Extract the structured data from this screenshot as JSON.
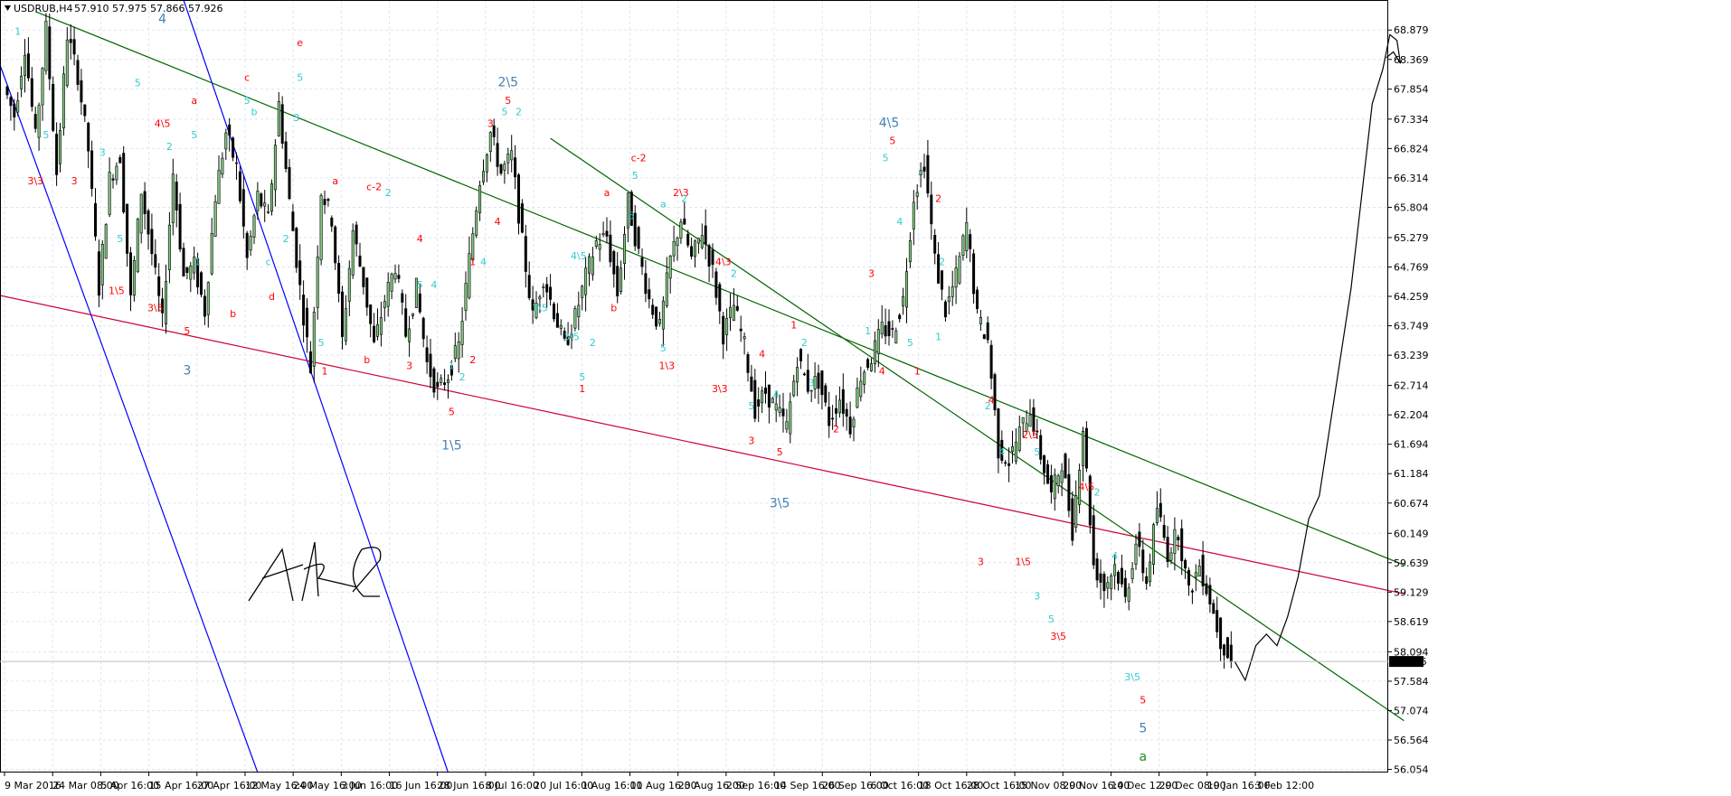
{
  "header": {
    "symbol_timeframe": "USDRUB,H4",
    "ohlc": "57.910 57.975 57.866 57.926"
  },
  "chart_data": {
    "type": "line",
    "symbol": "USDRUB",
    "timeframe": "H4",
    "ylim": [
      56.0,
      69.4
    ],
    "y_ticks": [
      68.879,
      68.369,
      67.854,
      67.334,
      66.824,
      66.314,
      65.804,
      65.279,
      64.769,
      64.259,
      63.749,
      63.239,
      62.714,
      62.204,
      61.694,
      61.184,
      60.674,
      60.149,
      59.639,
      59.129,
      58.619,
      58.094,
      57.584,
      57.074,
      56.564,
      56.054
    ],
    "x_ticks": [
      "9 Mar 2016",
      "24 Mar 08:00",
      "5 Apr 16:00",
      "15 Apr 16:00",
      "27 Apr 16:00",
      "12 May 16:00",
      "24 May 16:00",
      "3 Jun 16:00",
      "16 Jun 16:00",
      "28 Jun 16:00",
      "8 Jul 16:00",
      "20 Jul 16:00",
      "1 Aug 16:00",
      "11 Aug 16:00",
      "23 Aug 16:00",
      "2 Sep 16:00",
      "14 Sep 16:00",
      "26 Sep 16:00",
      "6 Oct 16:00",
      "18 Oct 16:00",
      "28 Oct 16:00",
      "15 Nov 08:00",
      "29 Nov 16:00",
      "14 Dec 12:00",
      "29 Dec 08:00",
      "19 Jan 16:00",
      "3 Feb 12:00"
    ],
    "current_price": 57.926,
    "price_path": [
      [
        0,
        67.9
      ],
      [
        3,
        67.4
      ],
      [
        6,
        68.6
      ],
      [
        9,
        67.0
      ],
      [
        12,
        68.9
      ],
      [
        15,
        66.4
      ],
      [
        18,
        68.8
      ],
      [
        21,
        68.1
      ],
      [
        24,
        66.8
      ],
      [
        27,
        64.4
      ],
      [
        30,
        66.3
      ],
      [
        33,
        66.7
      ],
      [
        36,
        64.2
      ],
      [
        39,
        66.1
      ],
      [
        42,
        65.0
      ],
      [
        45,
        63.8
      ],
      [
        48,
        66.4
      ],
      [
        51,
        64.6
      ],
      [
        54,
        64.8
      ],
      [
        57,
        64.0
      ],
      [
        60,
        66.0
      ],
      [
        63,
        67.1
      ],
      [
        66,
        66.5
      ],
      [
        69,
        64.9
      ],
      [
        72,
        66.0
      ],
      [
        75,
        65.6
      ],
      [
        78,
        67.6
      ],
      [
        81,
        65.9
      ],
      [
        84,
        64.4
      ],
      [
        87,
        63.0
      ],
      [
        90,
        66.1
      ],
      [
        93,
        65.6
      ],
      [
        96,
        63.5
      ],
      [
        99,
        65.4
      ],
      [
        102,
        64.5
      ],
      [
        105,
        63.4
      ],
      [
        108,
        64.2
      ],
      [
        111,
        64.8
      ],
      [
        114,
        63.6
      ],
      [
        117,
        64.4
      ],
      [
        120,
        63.1
      ],
      [
        123,
        62.6
      ],
      [
        126,
        62.9
      ],
      [
        129,
        63.4
      ],
      [
        132,
        64.9
      ],
      [
        135,
        66.3
      ],
      [
        138,
        67.1
      ],
      [
        141,
        66.4
      ],
      [
        144,
        66.7
      ],
      [
        147,
        65.2
      ],
      [
        150,
        63.9
      ],
      [
        153,
        64.6
      ],
      [
        156,
        64.0
      ],
      [
        159,
        63.4
      ],
      [
        162,
        63.9
      ],
      [
        165,
        64.6
      ],
      [
        168,
        65.2
      ],
      [
        171,
        65.3
      ],
      [
        174,
        64.3
      ],
      [
        177,
        65.9
      ],
      [
        180,
        65.0
      ],
      [
        183,
        64.2
      ],
      [
        186,
        63.7
      ],
      [
        189,
        64.9
      ],
      [
        192,
        65.6
      ],
      [
        195,
        64.9
      ],
      [
        198,
        65.4
      ],
      [
        201,
        64.7
      ],
      [
        204,
        63.6
      ],
      [
        207,
        64.1
      ],
      [
        210,
        63.4
      ],
      [
        213,
        62.3
      ],
      [
        216,
        62.6
      ],
      [
        219,
        62.3
      ],
      [
        222,
        62.0
      ],
      [
        225,
        63.2
      ],
      [
        228,
        62.7
      ],
      [
        231,
        62.8
      ],
      [
        234,
        62.1
      ],
      [
        237,
        62.5
      ],
      [
        240,
        62.0
      ],
      [
        243,
        62.9
      ],
      [
        246,
        63.2
      ],
      [
        249,
        63.7
      ],
      [
        252,
        63.6
      ],
      [
        255,
        64.2
      ],
      [
        258,
        66.0
      ],
      [
        261,
        66.6
      ],
      [
        264,
        64.9
      ],
      [
        267,
        64.0
      ],
      [
        270,
        64.6
      ],
      [
        273,
        65.5
      ],
      [
        276,
        63.9
      ],
      [
        279,
        63.5
      ],
      [
        282,
        61.6
      ],
      [
        285,
        61.4
      ],
      [
        288,
        61.9
      ],
      [
        291,
        62.3
      ],
      [
        294,
        61.5
      ],
      [
        297,
        60.8
      ],
      [
        300,
        61.4
      ],
      [
        303,
        60.2
      ],
      [
        306,
        62.0
      ],
      [
        309,
        59.6
      ],
      [
        312,
        59.2
      ],
      [
        315,
        59.6
      ],
      [
        318,
        59.0
      ],
      [
        321,
        60.0
      ],
      [
        324,
        59.3
      ],
      [
        327,
        60.6
      ],
      [
        330,
        59.8
      ],
      [
        333,
        60.2
      ],
      [
        336,
        59.1
      ],
      [
        339,
        59.6
      ],
      [
        342,
        59.0
      ],
      [
        345,
        58.3
      ],
      [
        348,
        57.926
      ]
    ],
    "forecast_path": [
      [
        348,
        57.926
      ],
      [
        351,
        57.6
      ],
      [
        354,
        58.2
      ],
      [
        357,
        58.4
      ],
      [
        360,
        58.2
      ],
      [
        363,
        58.7
      ],
      [
        366,
        59.4
      ],
      [
        369,
        60.4
      ],
      [
        372,
        60.8
      ],
      [
        375,
        62.0
      ],
      [
        378,
        63.2
      ],
      [
        381,
        64.4
      ],
      [
        384,
        66.0
      ],
      [
        387,
        67.6
      ],
      [
        390,
        68.2
      ],
      [
        392,
        68.8
      ],
      [
        394,
        68.7
      ],
      [
        395,
        68.3
      ],
      [
        393,
        68.5
      ],
      [
        391,
        68.4
      ]
    ],
    "trend_lines": [
      {
        "color": "#0000ff",
        "points": [
          [
            -4,
            68.6
          ],
          [
            71,
            56.0
          ]
        ]
      },
      {
        "color": "#0000ff",
        "points": [
          [
            50,
            69.4
          ],
          [
            125,
            56.0
          ]
        ]
      },
      {
        "color": "#cc0033",
        "points": [
          [
            -4,
            64.3
          ],
          [
            396,
            59.1
          ]
        ]
      },
      {
        "color": "#006600",
        "points": [
          [
            8,
            69.2
          ],
          [
            396,
            59.6
          ]
        ]
      },
      {
        "color": "#006600",
        "points": [
          [
            154,
            67.0
          ],
          [
            396,
            56.9
          ]
        ]
      }
    ],
    "wave_labels": [
      {
        "text": "3\\3",
        "x": 8,
        "y": 66.2,
        "color": "#ff0000"
      },
      {
        "text": "3",
        "x": 19,
        "y": 66.2,
        "color": "#ff0000"
      },
      {
        "text": "1\\5",
        "x": 31,
        "y": 64.3,
        "color": "#ff0000"
      },
      {
        "text": "4\\5",
        "x": 44,
        "y": 67.2,
        "color": "#ff0000"
      },
      {
        "text": "3\\5",
        "x": 42,
        "y": 64.0,
        "color": "#ff0000"
      },
      {
        "text": "5",
        "x": 51,
        "y": 63.6,
        "color": "#ff0000"
      },
      {
        "text": "a",
        "x": 53,
        "y": 67.6,
        "color": "#ff0000"
      },
      {
        "text": "b",
        "x": 64,
        "y": 63.9,
        "color": "#ff0000"
      },
      {
        "text": "c",
        "x": 68,
        "y": 68.0,
        "color": "#ff0000"
      },
      {
        "text": "d",
        "x": 75,
        "y": 64.2,
        "color": "#ff0000"
      },
      {
        "text": "e",
        "x": 83,
        "y": 68.6,
        "color": "#ff0000"
      },
      {
        "text": "1",
        "x": 90,
        "y": 62.9,
        "color": "#ff0000"
      },
      {
        "text": "a",
        "x": 93,
        "y": 66.2,
        "color": "#ff0000"
      },
      {
        "text": "b",
        "x": 102,
        "y": 63.1,
        "color": "#ff0000"
      },
      {
        "text": "c-2",
        "x": 104,
        "y": 66.1,
        "color": "#ff0000"
      },
      {
        "text": "3",
        "x": 114,
        "y": 63.0,
        "color": "#ff0000"
      },
      {
        "text": "4",
        "x": 117,
        "y": 65.2,
        "color": "#ff0000"
      },
      {
        "text": "5",
        "x": 126,
        "y": 62.2,
        "color": "#ff0000"
      },
      {
        "text": "3",
        "x": 137,
        "y": 67.2,
        "color": "#ff0000"
      },
      {
        "text": "5",
        "x": 142,
        "y": 67.6,
        "color": "#ff0000"
      },
      {
        "text": "4",
        "x": 139,
        "y": 65.5,
        "color": "#ff0000"
      },
      {
        "text": "1",
        "x": 132,
        "y": 64.8,
        "color": "#ff0000"
      },
      {
        "text": "2",
        "x": 132,
        "y": 63.1,
        "color": "#ff0000"
      },
      {
        "text": "a",
        "x": 170,
        "y": 66.0,
        "color": "#ff0000"
      },
      {
        "text": "b",
        "x": 172,
        "y": 64.0,
        "color": "#ff0000"
      },
      {
        "text": "1",
        "x": 163,
        "y": 62.6,
        "color": "#ff0000"
      },
      {
        "text": "c-2",
        "x": 179,
        "y": 66.6,
        "color": "#ff0000"
      },
      {
        "text": "1\\3",
        "x": 187,
        "y": 63.0,
        "color": "#ff0000"
      },
      {
        "text": "2\\3",
        "x": 191,
        "y": 66.0,
        "color": "#ff0000"
      },
      {
        "text": "4\\3",
        "x": 203,
        "y": 64.8,
        "color": "#ff0000"
      },
      {
        "text": "3\\3",
        "x": 202,
        "y": 62.6,
        "color": "#ff0000"
      },
      {
        "text": "4",
        "x": 214,
        "y": 63.2,
        "color": "#ff0000"
      },
      {
        "text": "3",
        "x": 211,
        "y": 61.7,
        "color": "#ff0000"
      },
      {
        "text": "5",
        "x": 219,
        "y": 61.5,
        "color": "#ff0000"
      },
      {
        "text": "1",
        "x": 223,
        "y": 63.7,
        "color": "#ff0000"
      },
      {
        "text": "2",
        "x": 235,
        "y": 61.9,
        "color": "#ff0000"
      },
      {
        "text": "3",
        "x": 245,
        "y": 64.6,
        "color": "#ff0000"
      },
      {
        "text": "4",
        "x": 248,
        "y": 62.9,
        "color": "#ff0000"
      },
      {
        "text": "5",
        "x": 251,
        "y": 66.9,
        "color": "#ff0000"
      },
      {
        "text": "1",
        "x": 258,
        "y": 62.9,
        "color": "#ff0000"
      },
      {
        "text": "2",
        "x": 264,
        "y": 65.9,
        "color": "#ff0000"
      },
      {
        "text": "4",
        "x": 279,
        "y": 62.4,
        "color": "#ff0000"
      },
      {
        "text": "3",
        "x": 276,
        "y": 59.6,
        "color": "#ff0000"
      },
      {
        "text": "2\\5",
        "x": 290,
        "y": 61.8,
        "color": "#ff0000"
      },
      {
        "text": "1\\5",
        "x": 288,
        "y": 59.6,
        "color": "#ff0000"
      },
      {
        "text": "3\\5",
        "x": 298,
        "y": 58.3,
        "color": "#ff0000"
      },
      {
        "text": "4\\5",
        "x": 306,
        "y": 60.9,
        "color": "#ff0000"
      },
      {
        "text": "5",
        "x": 322,
        "y": 57.2,
        "color": "#ff0000"
      },
      {
        "text": "1",
        "x": 3,
        "y": 68.8,
        "color": "#33cccc"
      },
      {
        "text": "5",
        "x": 11,
        "y": 67.0,
        "color": "#33cccc"
      },
      {
        "text": "5",
        "x": 37,
        "y": 67.9,
        "color": "#33cccc"
      },
      {
        "text": "3",
        "x": 27,
        "y": 66.7,
        "color": "#33cccc"
      },
      {
        "text": "5",
        "x": 32,
        "y": 65.2,
        "color": "#33cccc"
      },
      {
        "text": "2",
        "x": 46,
        "y": 66.8,
        "color": "#33cccc"
      },
      {
        "text": "5",
        "x": 53,
        "y": 67.0,
        "color": "#33cccc"
      },
      {
        "text": "1",
        "x": 54,
        "y": 64.8,
        "color": "#33cccc"
      },
      {
        "text": "b",
        "x": 70,
        "y": 67.4,
        "color": "#33cccc"
      },
      {
        "text": "5",
        "x": 68,
        "y": 67.6,
        "color": "#33cccc"
      },
      {
        "text": "2",
        "x": 79,
        "y": 65.2,
        "color": "#33cccc"
      },
      {
        "text": "3",
        "x": 82,
        "y": 67.3,
        "color": "#33cccc"
      },
      {
        "text": "5",
        "x": 83,
        "y": 68.0,
        "color": "#33cccc"
      },
      {
        "text": "c",
        "x": 74,
        "y": 64.8,
        "color": "#33cccc"
      },
      {
        "text": "5",
        "x": 89,
        "y": 63.4,
        "color": "#33cccc"
      },
      {
        "text": "2",
        "x": 108,
        "y": 66.0,
        "color": "#33cccc"
      },
      {
        "text": "4",
        "x": 121,
        "y": 64.4,
        "color": "#33cccc"
      },
      {
        "text": "5",
        "x": 117,
        "y": 64.4,
        "color": "#33cccc"
      },
      {
        "text": "1",
        "x": 126,
        "y": 63.0,
        "color": "#33cccc"
      },
      {
        "text": "2",
        "x": 129,
        "y": 62.8,
        "color": "#33cccc"
      },
      {
        "text": "4",
        "x": 135,
        "y": 64.8,
        "color": "#33cccc"
      },
      {
        "text": "5",
        "x": 141,
        "y": 67.4,
        "color": "#33cccc"
      },
      {
        "text": "2",
        "x": 145,
        "y": 67.4,
        "color": "#33cccc"
      },
      {
        "text": "4\\5",
        "x": 162,
        "y": 64.9,
        "color": "#33cccc"
      },
      {
        "text": "1\\5",
        "x": 151,
        "y": 64.0,
        "color": "#33cccc"
      },
      {
        "text": "3\\5",
        "x": 160,
        "y": 63.5,
        "color": "#33cccc"
      },
      {
        "text": "5",
        "x": 163,
        "y": 62.8,
        "color": "#33cccc"
      },
      {
        "text": "2",
        "x": 166,
        "y": 63.4,
        "color": "#33cccc"
      },
      {
        "text": "5",
        "x": 177,
        "y": 65.6,
        "color": "#33cccc"
      },
      {
        "text": "5",
        "x": 178,
        "y": 66.3,
        "color": "#33cccc"
      },
      {
        "text": "a",
        "x": 186,
        "y": 65.8,
        "color": "#33cccc"
      },
      {
        "text": "2",
        "x": 192,
        "y": 65.9,
        "color": "#33cccc"
      },
      {
        "text": "5",
        "x": 186,
        "y": 63.3,
        "color": "#33cccc"
      },
      {
        "text": "2",
        "x": 206,
        "y": 64.6,
        "color": "#33cccc"
      },
      {
        "text": "5",
        "x": 211,
        "y": 62.3,
        "color": "#33cccc"
      },
      {
        "text": "4",
        "x": 218,
        "y": 62.5,
        "color": "#33cccc"
      },
      {
        "text": "2",
        "x": 226,
        "y": 63.4,
        "color": "#33cccc"
      },
      {
        "text": "3",
        "x": 228,
        "y": 62.7,
        "color": "#33cccc"
      },
      {
        "text": "1",
        "x": 244,
        "y": 63.6,
        "color": "#33cccc"
      },
      {
        "text": "5",
        "x": 249,
        "y": 66.6,
        "color": "#33cccc"
      },
      {
        "text": "4",
        "x": 253,
        "y": 65.5,
        "color": "#33cccc"
      },
      {
        "text": "5",
        "x": 256,
        "y": 63.4,
        "color": "#33cccc"
      },
      {
        "text": "2",
        "x": 265,
        "y": 64.8,
        "color": "#33cccc"
      },
      {
        "text": "1",
        "x": 264,
        "y": 63.5,
        "color": "#33cccc"
      },
      {
        "text": "2",
        "x": 278,
        "y": 62.3,
        "color": "#33cccc"
      },
      {
        "text": "4",
        "x": 282,
        "y": 61.5,
        "color": "#33cccc"
      },
      {
        "text": "5",
        "x": 292,
        "y": 61.5,
        "color": "#33cccc"
      },
      {
        "text": "3",
        "x": 292,
        "y": 59.0,
        "color": "#33cccc"
      },
      {
        "text": "5",
        "x": 296,
        "y": 58.6,
        "color": "#33cccc"
      },
      {
        "text": "2",
        "x": 309,
        "y": 60.8,
        "color": "#33cccc"
      },
      {
        "text": "4",
        "x": 314,
        "y": 59.7,
        "color": "#33cccc"
      },
      {
        "text": "3\\5",
        "x": 319,
        "y": 57.6,
        "color": "#33cccc"
      },
      {
        "text": "4",
        "x": 44,
        "y": 69.0,
        "color": "#4682b4",
        "big": true
      },
      {
        "text": "3",
        "x": 51,
        "y": 62.9,
        "color": "#4682b4",
        "big": true
      },
      {
        "text": "2\\5",
        "x": 142,
        "y": 67.9,
        "color": "#4682b4",
        "big": true
      },
      {
        "text": "1\\5",
        "x": 126,
        "y": 61.6,
        "color": "#4682b4",
        "big": true
      },
      {
        "text": "4\\5",
        "x": 250,
        "y": 67.2,
        "color": "#4682b4",
        "big": true
      },
      {
        "text": "3\\5",
        "x": 219,
        "y": 60.6,
        "color": "#4682b4",
        "big": true
      },
      {
        "text": "5",
        "x": 322,
        "y": 56.7,
        "color": "#4682b4",
        "big": true
      },
      {
        "text": "a",
        "x": 322,
        "y": 56.2,
        "color": "#228b22",
        "big": true
      }
    ]
  }
}
